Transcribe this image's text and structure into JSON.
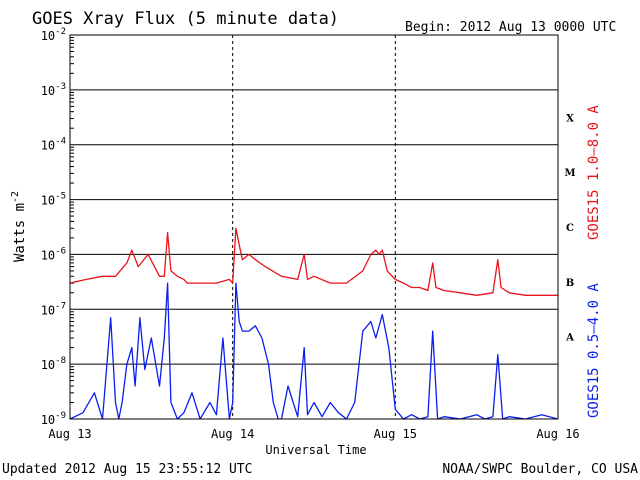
{
  "chart_data": {
    "type": "line",
    "title": "GOES Xray Flux (5 minute data)",
    "begin_label": "Begin:  2012 Aug 13 0000 UTC",
    "ylabel": "Watts m",
    "ylabel_sup": "-2",
    "xlabel": "Universal Time",
    "y_scale": "log",
    "ylim": [
      1e-09,
      0.01
    ],
    "y_ticks": [
      {
        "base": "10",
        "exp": "-2"
      },
      {
        "base": "10",
        "exp": "-3"
      },
      {
        "base": "10",
        "exp": "-4"
      },
      {
        "base": "10",
        "exp": "-5"
      },
      {
        "base": "10",
        "exp": "-6"
      },
      {
        "base": "10",
        "exp": "-7"
      },
      {
        "base": "10",
        "exp": "-8"
      },
      {
        "base": "10",
        "exp": "-9"
      }
    ],
    "x_ticks": [
      "Aug 13",
      "Aug 14",
      "Aug 15",
      "Aug 16"
    ],
    "xlim_days": [
      0,
      3
    ],
    "grid": true,
    "flare_classes": [
      "X",
      "M",
      "C",
      "B",
      "A"
    ],
    "series": [
      {
        "name": "GOES15 1.0–8.0 A",
        "color": "#e8141c",
        "x": [
          0,
          0.1,
          0.2,
          0.28,
          0.35,
          0.38,
          0.42,
          0.48,
          0.55,
          0.58,
          0.6,
          0.62,
          0.66,
          0.7,
          0.72,
          0.75,
          0.8,
          0.9,
          0.98,
          1.0,
          1.02,
          1.04,
          1.06,
          1.1,
          1.14,
          1.2,
          1.3,
          1.4,
          1.44,
          1.46,
          1.5,
          1.6,
          1.7,
          1.8,
          1.85,
          1.88,
          1.9,
          1.92,
          1.95,
          2.0,
          2.05,
          2.1,
          2.15,
          2.2,
          2.23,
          2.25,
          2.3,
          2.4,
          2.5,
          2.6,
          2.63,
          2.65,
          2.7,
          2.8,
          2.9,
          3.0
        ],
        "y": [
          3e-07,
          3.5e-07,
          4e-07,
          4e-07,
          7e-07,
          1.2e-06,
          6e-07,
          1e-06,
          4e-07,
          4e-07,
          2.5e-06,
          5e-07,
          4e-07,
          3.5e-07,
          3e-07,
          3e-07,
          3e-07,
          3e-07,
          3.5e-07,
          3e-07,
          3e-06,
          1.5e-06,
          8e-07,
          1e-06,
          8e-07,
          6e-07,
          4e-07,
          3.5e-07,
          1e-06,
          3.5e-07,
          4e-07,
          3e-07,
          3e-07,
          5e-07,
          1e-06,
          1.2e-06,
          1e-06,
          1.2e-06,
          5e-07,
          3.5e-07,
          3e-07,
          2.5e-07,
          2.5e-07,
          2.2e-07,
          7e-07,
          2.5e-07,
          2.2e-07,
          2e-07,
          1.8e-07,
          2e-07,
          8e-07,
          2.5e-07,
          2e-07,
          1.8e-07,
          1.8e-07,
          1.8e-07
        ]
      },
      {
        "name": "GOES15 0.5–4.0 A",
        "color": "#0a1ef0",
        "x": [
          0,
          0.08,
          0.15,
          0.2,
          0.25,
          0.28,
          0.3,
          0.32,
          0.35,
          0.38,
          0.4,
          0.43,
          0.46,
          0.5,
          0.55,
          0.58,
          0.6,
          0.62,
          0.66,
          0.7,
          0.75,
          0.8,
          0.86,
          0.9,
          0.94,
          0.98,
          1.0,
          1.02,
          1.04,
          1.06,
          1.1,
          1.14,
          1.18,
          1.22,
          1.25,
          1.28,
          1.3,
          1.34,
          1.4,
          1.44,
          1.46,
          1.5,
          1.55,
          1.6,
          1.65,
          1.7,
          1.75,
          1.8,
          1.85,
          1.88,
          1.92,
          1.96,
          2.0,
          2.05,
          2.1,
          2.15,
          2.2,
          2.23,
          2.26,
          2.3,
          2.4,
          2.5,
          2.55,
          2.6,
          2.63,
          2.66,
          2.7,
          2.8,
          2.9,
          3.0
        ],
        "y": [
          1e-09,
          1.3e-09,
          3e-09,
          1e-09,
          7e-08,
          2e-09,
          1e-09,
          2e-09,
          1e-08,
          2e-08,
          4e-09,
          7e-08,
          8e-09,
          3e-08,
          4e-09,
          3e-08,
          3e-07,
          2e-09,
          1e-09,
          1.3e-09,
          3e-09,
          1e-09,
          2e-09,
          1.2e-09,
          3e-08,
          1e-09,
          2e-09,
          3e-07,
          6e-08,
          4e-08,
          4e-08,
          5e-08,
          3e-08,
          1e-08,
          2e-09,
          1e-09,
          1e-09,
          4e-09,
          1.1e-09,
          2e-08,
          1.2e-09,
          2e-09,
          1.1e-09,
          2e-09,
          1.3e-09,
          1e-09,
          2e-09,
          4e-08,
          6e-08,
          3e-08,
          8e-08,
          2e-08,
          1.5e-09,
          1e-09,
          1.2e-09,
          1e-09,
          1.1e-09,
          4e-08,
          1e-09,
          1.1e-09,
          1e-09,
          1.2e-09,
          1e-09,
          1.1e-09,
          1.5e-08,
          1e-09,
          1.1e-09,
          1e-09,
          1.2e-09,
          1e-09
        ]
      }
    ]
  },
  "footer": {
    "updated": "Updated 2012 Aug 15 23:55:12 UTC",
    "source": "NOAA/SWPC Boulder, CO USA"
  }
}
